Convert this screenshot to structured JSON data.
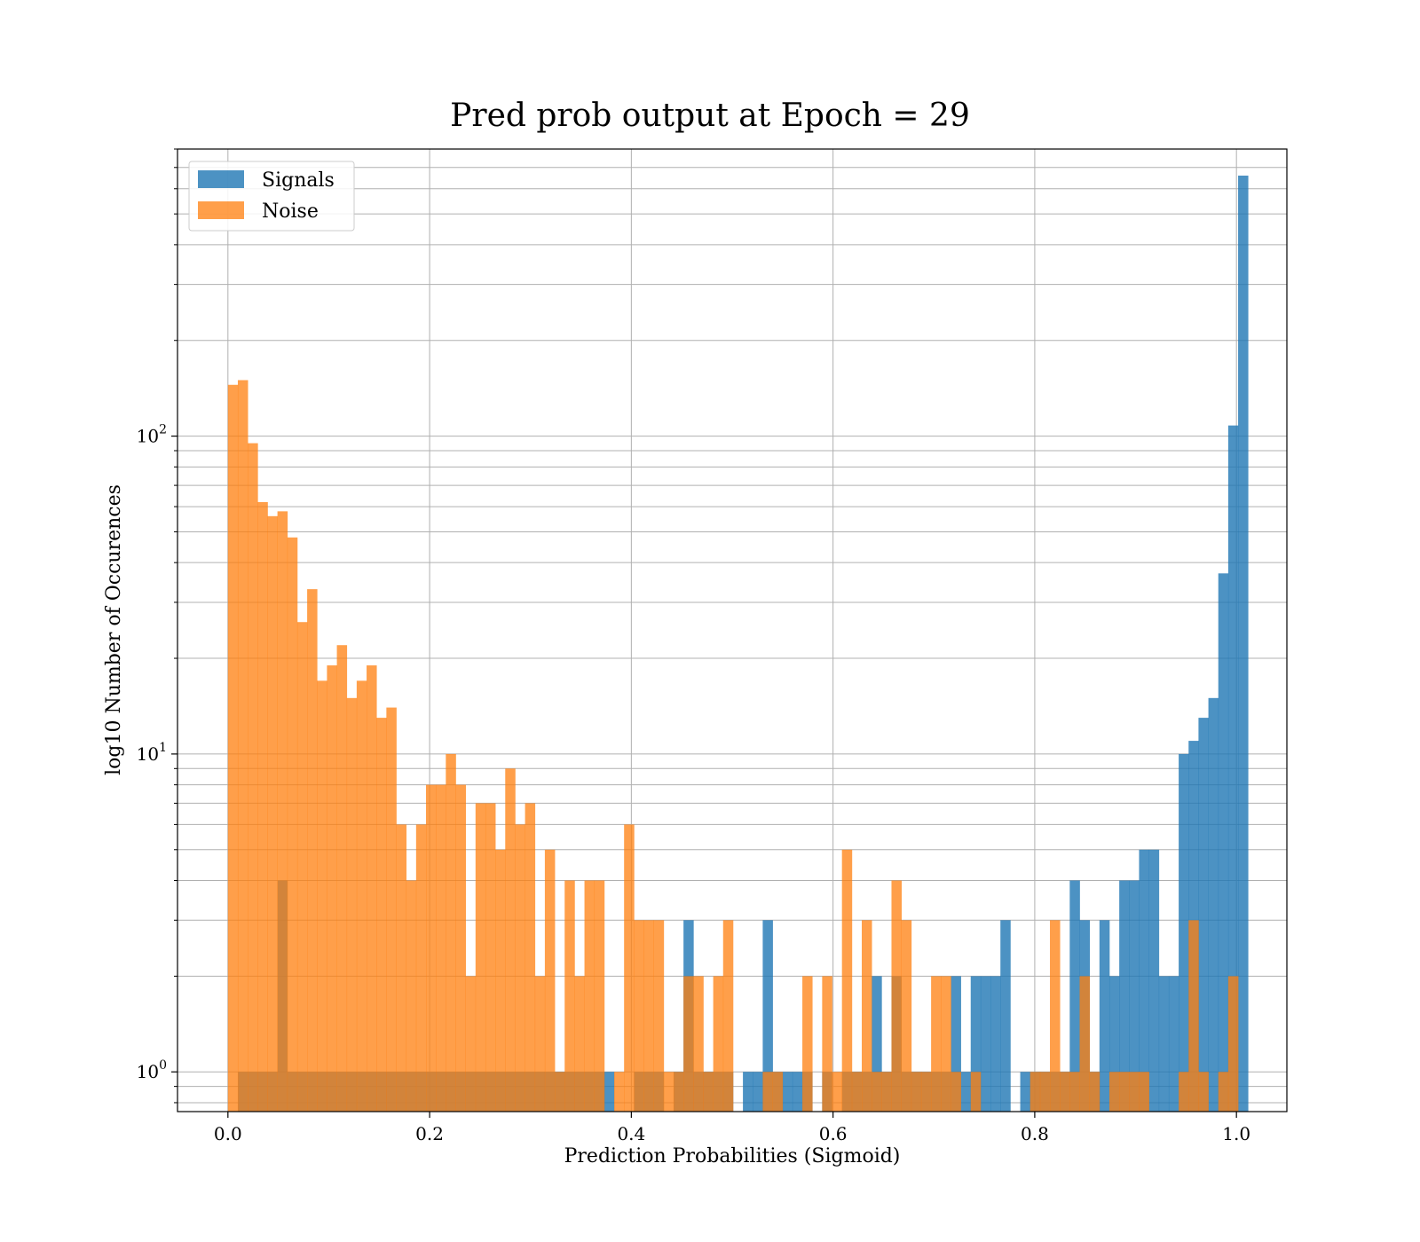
{
  "chart_data": {
    "type": "bar",
    "title": "Pred prob output at Epoch = 29",
    "xlabel": "Prediction Probabilities (Sigmoid)",
    "ylabel": "log10 Number of Occurences",
    "yscale": "log",
    "xlim": [
      -0.05,
      1.05
    ],
    "ylim": [
      0.75,
      800
    ],
    "x_ticks": [
      {
        "value": 0.0,
        "label": "0.0"
      },
      {
        "value": 0.2,
        "label": "0.2"
      },
      {
        "value": 0.4,
        "label": "0.4"
      },
      {
        "value": 0.6,
        "label": "0.6"
      },
      {
        "value": 0.8,
        "label": "0.8"
      },
      {
        "value": 1.0,
        "label": "1.0"
      }
    ],
    "y_ticks": [
      {
        "value": 1,
        "base": "10",
        "exp": "0"
      },
      {
        "value": 10,
        "base": "10",
        "exp": "1"
      },
      {
        "value": 100,
        "base": "10",
        "exp": "2"
      }
    ],
    "grid": true,
    "legend_position": "top-left",
    "bin_start": 0.0,
    "bin_width": 0.00982,
    "series": [
      {
        "name": "Signals",
        "color": "#1f77b4",
        "opacity": 0.8,
        "values": [
          0,
          1,
          1,
          1,
          1,
          4,
          1,
          1,
          1,
          1,
          1,
          1,
          1,
          1,
          1,
          1,
          1,
          1,
          1,
          1,
          1,
          1,
          1,
          1,
          1,
          1,
          1,
          1,
          1,
          1,
          1,
          1,
          1,
          1,
          1,
          1,
          1,
          1,
          1,
          0,
          0,
          1,
          1,
          1,
          0,
          1,
          3,
          1,
          1,
          1,
          1,
          0,
          1,
          1,
          3,
          1,
          1,
          1,
          1,
          0,
          1,
          0,
          1,
          1,
          1,
          2,
          1,
          2,
          1,
          1,
          1,
          1,
          1,
          2,
          1,
          2,
          2,
          2,
          3,
          0,
          1,
          1,
          1,
          1,
          1,
          4,
          3,
          1,
          3,
          2,
          4,
          4,
          5,
          5,
          2,
          2,
          10,
          11,
          13,
          15,
          37,
          108,
          660
        ]
      },
      {
        "name": "Noise",
        "color": "#ff7f0e",
        "opacity": 0.75,
        "values": [
          145,
          150,
          95,
          62,
          56,
          58,
          48,
          26,
          33,
          17,
          19,
          22,
          15,
          17,
          19,
          13,
          14,
          6,
          4,
          6,
          8,
          8,
          10,
          8,
          2,
          7,
          7,
          5,
          9,
          6,
          7,
          2,
          5,
          1,
          4,
          2,
          4,
          4,
          0,
          1,
          6,
          3,
          3,
          3,
          1,
          1,
          2,
          2,
          1,
          2,
          3,
          0,
          0,
          0,
          1,
          1,
          0,
          0,
          2,
          0,
          2,
          1,
          5,
          1,
          3,
          1,
          1,
          4,
          3,
          1,
          1,
          2,
          2,
          1,
          0,
          1,
          0,
          0,
          0,
          0,
          0,
          1,
          1,
          3,
          1,
          1,
          2,
          1,
          0,
          1,
          1,
          1,
          1,
          0,
          0,
          0,
          1,
          3,
          1,
          0,
          1,
          2,
          0
        ]
      }
    ]
  }
}
